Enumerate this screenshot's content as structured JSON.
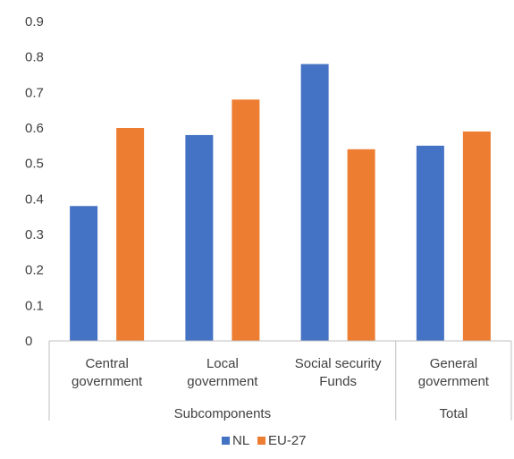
{
  "chart_data": {
    "type": "bar",
    "categories": [
      {
        "lines": [
          "Central",
          "government"
        ],
        "group": "Subcomponents"
      },
      {
        "lines": [
          "Local",
          "government"
        ],
        "group": "Subcomponents"
      },
      {
        "lines": [
          "Social security",
          "Funds"
        ],
        "group": "Subcomponents"
      },
      {
        "lines": [
          "General",
          "government"
        ],
        "group": "Total"
      }
    ],
    "groups": [
      "Subcomponents",
      "Total"
    ],
    "series": [
      {
        "name": "NL",
        "color": "#4472C4",
        "values": [
          0.38,
          0.58,
          0.78,
          0.55
        ]
      },
      {
        "name": "EU-27",
        "color": "#ED7D31",
        "values": [
          0.6,
          0.68,
          0.54,
          0.59
        ]
      }
    ],
    "ylim": [
      0,
      0.9
    ],
    "yticks": [
      "0",
      "0.1",
      "0.2",
      "0.3",
      "0.4",
      "0.5",
      "0.6",
      "0.7",
      "0.8",
      "0.9"
    ],
    "grid": false,
    "legend_position": "bottom"
  }
}
